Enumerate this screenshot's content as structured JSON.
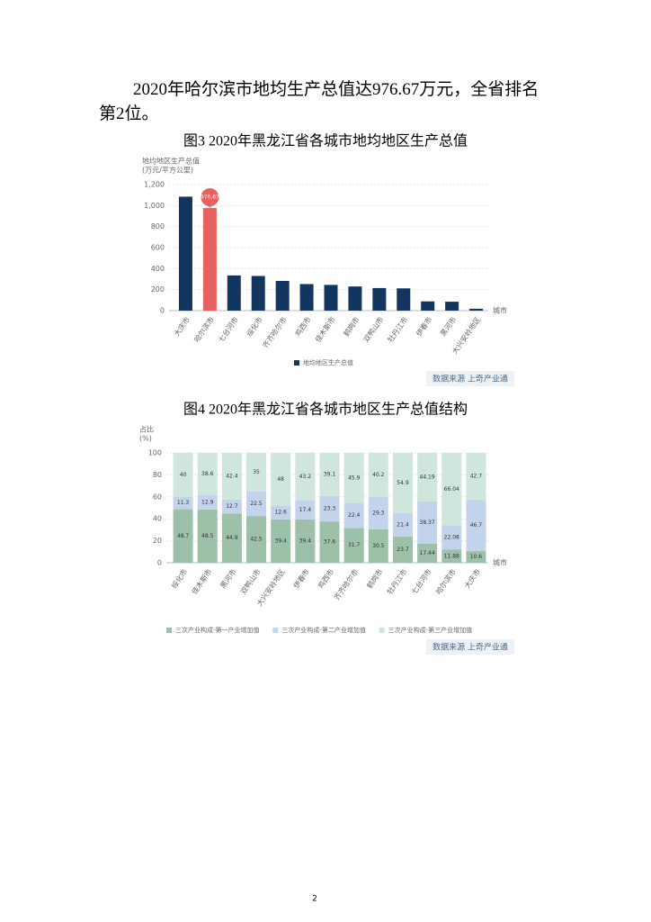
{
  "paragraph": "2020年哈尔滨市地均生产总值达976.67万元，全省排名第2位。",
  "chart_data": [
    {
      "type": "bar",
      "title": "图3 2020年黑龙江省各城市地均地区生产总值",
      "y_label": [
        "地均地区生产总值",
        "(万元/平方公里)"
      ],
      "x_label": "城市",
      "categories": [
        "大庆市",
        "哈尔滨市",
        "七台河市",
        "绥化市",
        "齐齐哈尔市",
        "鸡西市",
        "佳木斯市",
        "鹤岗市",
        "双鸭山市",
        "牡丹江市",
        "伊春市",
        "黑河市",
        "大兴安岭地区"
      ],
      "series": [
        {
          "name": "地均地区生产总值",
          "color": "#12365f",
          "values": [
            1085,
            976.67,
            335,
            330,
            283,
            253,
            245,
            230,
            215,
            212,
            88,
            85,
            18
          ],
          "value_labels": [
            null,
            "976.67",
            null,
            null,
            null,
            null,
            null,
            null,
            null,
            null,
            null,
            null,
            null
          ]
        }
      ],
      "highlight_color": "#e8605f",
      "ylim": [
        0,
        1200
      ],
      "yticks": [
        0,
        200,
        400,
        600,
        800,
        {
          "value": 1000,
          "label": "1,000"
        },
        {
          "value": 1200,
          "label": "1,200"
        }
      ],
      "grid": true,
      "source": "数据来源 上奇产业通"
    },
    {
      "type": "stacked_bar",
      "title": "图4 2020年黑龙江省各城市地区生产总值结构",
      "y_label": [
        "占比",
        "(%)"
      ],
      "x_label": "城市",
      "categories": [
        "绥化市",
        "佳木斯市",
        "黑河市",
        "双鸭山市",
        "大兴安岭地区",
        "伊春市",
        "鸡西市",
        "齐齐哈尔市",
        "鹤岗市",
        "牡丹江市",
        "七台河市",
        "哈尔滨市",
        "大庆市"
      ],
      "series": [
        {
          "name": "三次产业构成-第一产业增加值",
          "color": "#9dc0a8",
          "values": [
            48.7,
            48.5,
            44.9,
            42.5,
            39.4,
            39.4,
            37.6,
            31.7,
            30.5,
            23.7,
            17.44,
            11.88,
            10.6
          ]
        },
        {
          "name": "三次产业构成-第二产业增加值",
          "color": "#c3d3ec",
          "values": [
            11.3,
            12.9,
            12.7,
            22.5,
            12.6,
            17.4,
            23.3,
            22.4,
            29.3,
            21.4,
            38.37,
            22.08,
            46.7
          ]
        },
        {
          "name": "三次产业构成-第三产业增加值",
          "color": "#cfe6dd",
          "values": [
            40,
            38.6,
            42.4,
            35,
            48,
            43.2,
            39.1,
            45.9,
            40.2,
            54.9,
            44.19,
            66.04,
            42.7
          ]
        }
      ],
      "ylim": [
        0,
        100
      ],
      "yticks": [
        0,
        20,
        40,
        60,
        80,
        100
      ],
      "grid": true,
      "source": "数据来源 上奇产业通"
    }
  ],
  "page_number": "2"
}
